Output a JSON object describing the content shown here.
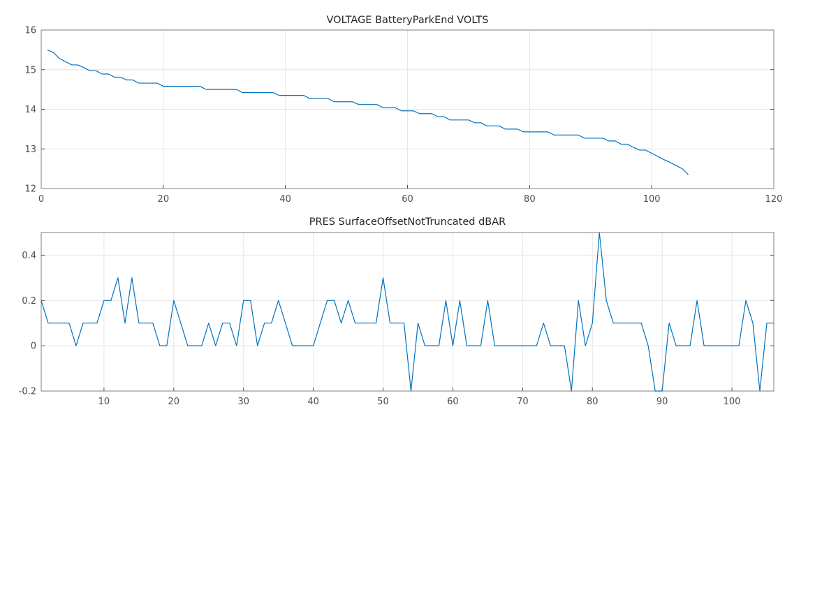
{
  "chart_data": [
    {
      "type": "line",
      "title": "VOLTAGE BatteryParkEnd VOLTS",
      "xlabel": "",
      "ylabel": "",
      "xlim": [
        0,
        120
      ],
      "ylim": [
        12,
        16
      ],
      "xticks": [
        "0",
        "20",
        "40",
        "60",
        "80",
        "100",
        "120"
      ],
      "yticks": [
        "12",
        "13",
        "14",
        "15",
        "16"
      ],
      "grid": true,
      "legend": "none",
      "color": "#0072bd",
      "series": [
        {
          "x": [
            1,
            2,
            3,
            4,
            5,
            6,
            7,
            8,
            9,
            10,
            11,
            12,
            13,
            14,
            15,
            16,
            17,
            18,
            19,
            20,
            21,
            22,
            23,
            24,
            25,
            26,
            27,
            28,
            29,
            30,
            31,
            32,
            33,
            34,
            35,
            36,
            37,
            38,
            39,
            40,
            41,
            42,
            43,
            44,
            45,
            46,
            47,
            48,
            49,
            50,
            51,
            52,
            53,
            54,
            55,
            56,
            57,
            58,
            59,
            60,
            61,
            62,
            63,
            64,
            65,
            66,
            67,
            68,
            69,
            70,
            71,
            72,
            73,
            74,
            75,
            76,
            77,
            78,
            79,
            80,
            81,
            82,
            83,
            84,
            85,
            86,
            87,
            88,
            89,
            90,
            91,
            92,
            93,
            94,
            95,
            96,
            97,
            98,
            99,
            100,
            101,
            102,
            103,
            104,
            105,
            106
          ],
          "values": [
            15.5,
            15.43,
            15.28,
            15.2,
            15.12,
            15.12,
            15.05,
            14.97,
            14.97,
            14.89,
            14.89,
            14.81,
            14.81,
            14.74,
            14.74,
            14.66,
            14.66,
            14.66,
            14.66,
            14.58,
            14.58,
            14.58,
            14.58,
            14.58,
            14.58,
            14.58,
            14.5,
            14.5,
            14.5,
            14.5,
            14.5,
            14.5,
            14.42,
            14.42,
            14.42,
            14.42,
            14.42,
            14.42,
            14.35,
            14.35,
            14.35,
            14.35,
            14.35,
            14.27,
            14.27,
            14.27,
            14.27,
            14.19,
            14.19,
            14.19,
            14.19,
            14.12,
            14.12,
            14.12,
            14.12,
            14.04,
            14.04,
            14.04,
            13.96,
            13.96,
            13.96,
            13.89,
            13.89,
            13.89,
            13.81,
            13.81,
            13.73,
            13.73,
            13.73,
            13.73,
            13.66,
            13.66,
            13.58,
            13.58,
            13.58,
            13.5,
            13.5,
            13.5,
            13.43,
            13.43,
            13.43,
            13.43,
            13.43,
            13.35,
            13.35,
            13.35,
            13.35,
            13.35,
            13.27,
            13.27,
            13.27,
            13.27,
            13.2,
            13.2,
            13.12,
            13.12,
            13.04,
            12.97,
            12.97,
            12.89,
            12.81,
            12.73,
            12.66,
            12.58,
            12.5,
            12.35
          ]
        }
      ]
    },
    {
      "type": "line",
      "title": "PRES SurfaceOffsetNotTruncated dBAR",
      "xlabel": "",
      "ylabel": "",
      "xlim": [
        1,
        106
      ],
      "ylim": [
        -0.2,
        0.5
      ],
      "xticks": [
        "10",
        "20",
        "30",
        "40",
        "50",
        "60",
        "70",
        "80",
        "90",
        "100"
      ],
      "yticks": [
        "-0.2",
        "0",
        "0.2",
        "0.4"
      ],
      "grid": true,
      "legend": "none",
      "color": "#0072bd",
      "series": [
        {
          "x": [
            1,
            2,
            3,
            4,
            5,
            6,
            7,
            8,
            9,
            10,
            11,
            12,
            13,
            14,
            15,
            16,
            17,
            18,
            19,
            20,
            21,
            22,
            23,
            24,
            25,
            26,
            27,
            28,
            29,
            30,
            31,
            32,
            33,
            34,
            35,
            36,
            37,
            38,
            39,
            40,
            41,
            42,
            43,
            44,
            45,
            46,
            47,
            48,
            49,
            50,
            51,
            52,
            53,
            54,
            55,
            56,
            57,
            58,
            59,
            60,
            61,
            62,
            63,
            64,
            65,
            66,
            67,
            68,
            69,
            70,
            71,
            72,
            73,
            74,
            75,
            76,
            77,
            78,
            79,
            80,
            81,
            82,
            83,
            84,
            85,
            86,
            87,
            88,
            89,
            90,
            91,
            92,
            93,
            94,
            95,
            96,
            97,
            98,
            99,
            100,
            101,
            102,
            103,
            104,
            105,
            106
          ],
          "values": [
            0.2,
            0.1,
            0.1,
            0.1,
            0.1,
            0,
            0.1,
            0.1,
            0.1,
            0.2,
            0.2,
            0.3,
            0.1,
            0.3,
            0.1,
            0.1,
            0.1,
            0,
            0,
            0.2,
            0.1,
            0,
            0,
            0,
            0.1,
            0,
            0.1,
            0.1,
            0,
            0.2,
            0.2,
            0,
            0.1,
            0.1,
            0.2,
            0.1,
            0,
            0,
            0,
            0,
            0.1,
            0.2,
            0.2,
            0.1,
            0.2,
            0.1,
            0.1,
            0.1,
            0.1,
            0.3,
            0.1,
            0.1,
            0.1,
            -0.2,
            0.1,
            0,
            0,
            0,
            0.2,
            0,
            0.2,
            0,
            0,
            0,
            0.2,
            0,
            0,
            0,
            0,
            0,
            0,
            0,
            0.1,
            0,
            0,
            0,
            -0.2,
            0.2,
            0,
            0.1,
            0.5,
            0.2,
            0.1,
            0.1,
            0.1,
            0.1,
            0.1,
            0,
            -0.2,
            -0.2,
            0.1,
            0,
            0,
            0,
            0.2,
            0,
            0,
            0,
            0,
            0,
            0,
            0.2,
            0.1,
            -0.2,
            0.1,
            0.1
          ]
        }
      ]
    }
  ]
}
